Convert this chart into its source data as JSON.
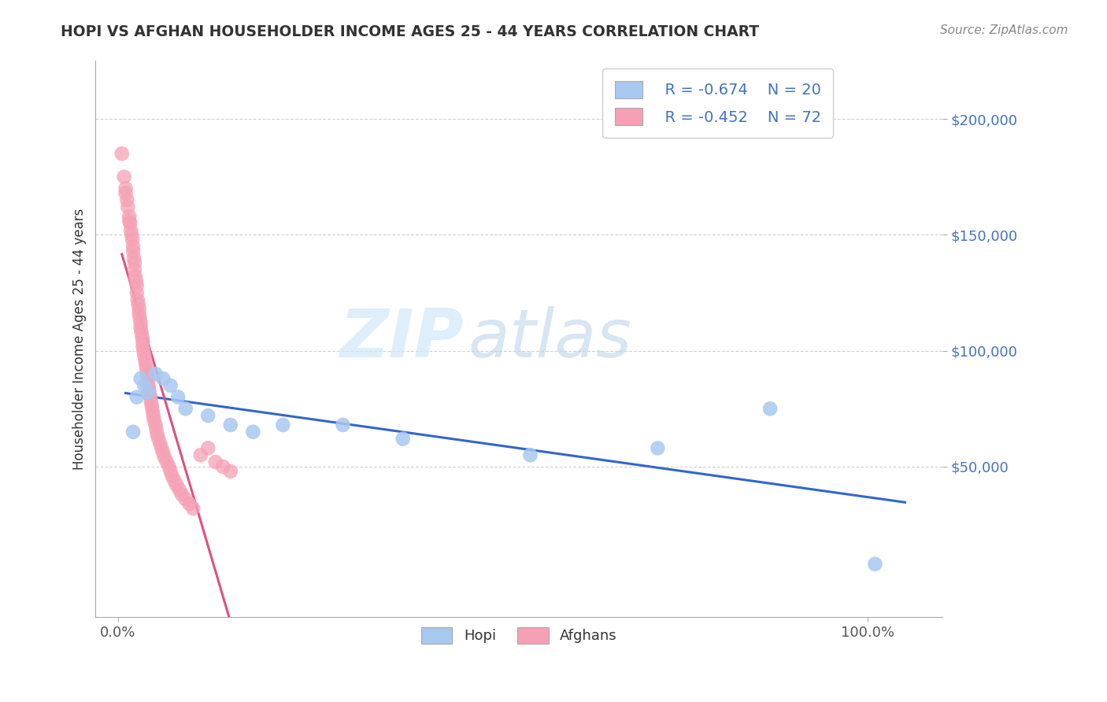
{
  "title": "HOPI VS AFGHAN HOUSEHOLDER INCOME AGES 25 - 44 YEARS CORRELATION CHART",
  "source_text": "Source: ZipAtlas.com",
  "ylabel": "Householder Income Ages 25 - 44 years",
  "xlim": [
    -0.03,
    1.1
  ],
  "ylim": [
    -15000,
    225000
  ],
  "yticks": [
    50000,
    100000,
    150000,
    200000
  ],
  "ytick_labels": [
    "$50,000",
    "$100,000",
    "$150,000",
    "$200,000"
  ],
  "hopi_color": "#a8c8f0",
  "hopi_line_color": "#3366cc",
  "afghan_color": "#f5a0b5",
  "afghan_line_color": "#e05080",
  "legend_R_hopi": "R = -0.674",
  "legend_N_hopi": "N = 20",
  "legend_R_afghan": "R = -0.452",
  "legend_N_afghan": "N = 72",
  "watermark_zip": "ZIP",
  "watermark_atlas": "atlas",
  "hopi_x": [
    0.02,
    0.025,
    0.03,
    0.035,
    0.04,
    0.05,
    0.06,
    0.07,
    0.08,
    0.09,
    0.12,
    0.15,
    0.18,
    0.22,
    0.3,
    0.38,
    0.55,
    0.72,
    0.87,
    1.01
  ],
  "hopi_y": [
    65000,
    80000,
    88000,
    85000,
    82000,
    90000,
    88000,
    85000,
    80000,
    75000,
    72000,
    68000,
    65000,
    68000,
    68000,
    62000,
    55000,
    58000,
    75000,
    8000
  ],
  "afghan_x": [
    0.005,
    0.008,
    0.01,
    0.01,
    0.012,
    0.013,
    0.015,
    0.015,
    0.016,
    0.017,
    0.018,
    0.019,
    0.02,
    0.02,
    0.021,
    0.022,
    0.022,
    0.023,
    0.024,
    0.025,
    0.025,
    0.026,
    0.027,
    0.028,
    0.028,
    0.029,
    0.03,
    0.03,
    0.031,
    0.032,
    0.033,
    0.033,
    0.034,
    0.035,
    0.036,
    0.037,
    0.038,
    0.039,
    0.04,
    0.04,
    0.041,
    0.042,
    0.043,
    0.044,
    0.045,
    0.046,
    0.047,
    0.048,
    0.05,
    0.051,
    0.052,
    0.054,
    0.056,
    0.058,
    0.06,
    0.062,
    0.065,
    0.068,
    0.07,
    0.072,
    0.075,
    0.078,
    0.082,
    0.085,
    0.09,
    0.095,
    0.1,
    0.11,
    0.12,
    0.13,
    0.14,
    0.15
  ],
  "afghan_y": [
    185000,
    175000,
    170000,
    168000,
    165000,
    162000,
    158000,
    156000,
    155000,
    152000,
    150000,
    148000,
    145000,
    143000,
    140000,
    138000,
    135000,
    132000,
    130000,
    128000,
    125000,
    122000,
    120000,
    118000,
    116000,
    114000,
    112000,
    110000,
    108000,
    106000,
    104000,
    102000,
    100000,
    98000,
    96000,
    94000,
    92000,
    90000,
    88000,
    86000,
    84000,
    82000,
    80000,
    78000,
    76000,
    74000,
    72000,
    70000,
    68000,
    66000,
    64000,
    62000,
    60000,
    58000,
    56000,
    54000,
    52000,
    50000,
    48000,
    46000,
    44000,
    42000,
    40000,
    38000,
    36000,
    34000,
    32000,
    55000,
    58000,
    52000,
    50000,
    48000
  ]
}
